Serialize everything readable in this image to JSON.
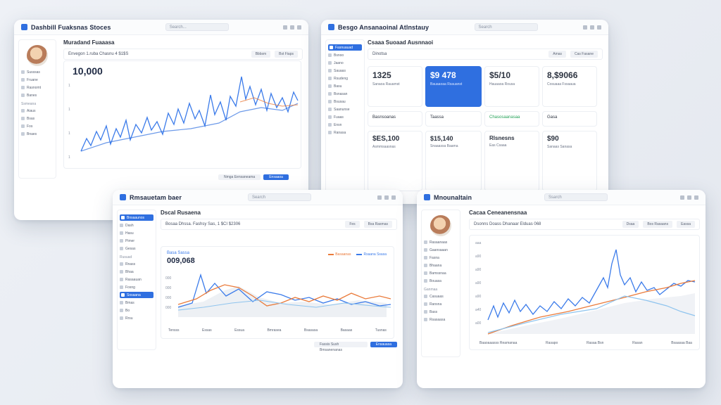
{
  "w1": {
    "title": "Dashbill Fuaksnas Stoces",
    "search": "Search...",
    "section": "Muradand Fuaaasa",
    "toolbar": "Envegon 1.ruba Chasnu 4 $1$S",
    "tool1": "Bbbsm",
    "tool2": "Bst Fiaps",
    "big": "10,000",
    "footer1": "Nmga Eensaneama",
    "footer2": "Ensaaoa",
    "side": [
      "Susssas",
      "Fruane",
      "Rasnomt",
      "Banes",
      "Aiaus",
      "Bsas",
      "Fos",
      "Bnaes"
    ],
    "side_head": "Ssmeana"
  },
  "w2": {
    "title": "Besgo Ansanaoinal Atlnstauy",
    "search": "Search",
    "section": "Csaaa Suoaad Ausnnaoi",
    "toolbar": "Dinotsa",
    "tool1": "Amas",
    "tool2": "Cas Fasane",
    "kpi": [
      {
        "val": "1325",
        "label": "Sanaoa Rauamst"
      },
      {
        "val": "$9 478",
        "label": "Bauaaoaa Rsauanst"
      },
      {
        "val": "$5/10",
        "label": "Hauaaoa Rousa"
      },
      {
        "val": "8,$9066",
        "label": "Cosuaaa Fssaaua"
      }
    ],
    "chips": [
      "Basnsoanas",
      "Taassa",
      "Chasosaanasaa",
      "Gasa"
    ],
    "lower": [
      {
        "val": "$ES,100",
        "label": "Asmmsaasnas"
      },
      {
        "val": "$15,140",
        "label": "Snaaassa Baama"
      },
      {
        "val": "Rlsnesns",
        "label": "Eas Csaaa"
      },
      {
        "val": "$90",
        "label": "Sanaas Sanasa"
      }
    ],
    "side": [
      "Fasnuauad",
      "Bsnoo",
      "Jaano",
      "Sauaas",
      "Rsudeng",
      "Basu",
      "Bsnasan",
      "Bsusau",
      "Saanunse",
      "Fuaas",
      "Ensn",
      "Ranasa"
    ]
  },
  "w3": {
    "title": "Rmsauetam baer",
    "search": "Search",
    "section": "Dscal Rusaena",
    "toolbar": "Bosaa Dhssa. Fashsy Sas, 1 $CI $2306",
    "tool1": "Fes",
    "tool2": "Bsa Rasmas",
    "subtitle": "Basa Sassa",
    "big": "009,068",
    "legend": [
      "Basaanas",
      "Rsaana Ssasa"
    ],
    "footer1": "Fassis Sush Bmsanenanas",
    "footer2": "Ensauasa",
    "xlabels": [
      "Tensss",
      "Essas",
      "Essua",
      "Bmrasea",
      "Bsasasa",
      "Basaas",
      "Tusnas"
    ],
    "side": [
      "Bnsaaunos",
      "Dash",
      "Hasu",
      "Pimer",
      "Gesas",
      "Rnass",
      "Bhaa",
      "Rasaauan",
      "Fosng",
      "Sosaana",
      "Bmas",
      "Bo",
      "Rrsu"
    ],
    "side_head": "Rusuad"
  },
  "w4": {
    "title": "Mnounaltain",
    "search": "Ssarch",
    "section": "Cacaa Ceneanensnaa",
    "toolbar": "Dsonns Doass Dhanaar Elduas 068",
    "tool1": "Dsaa",
    "tool2": "Bos Rasaans",
    "tool3": "Eassa",
    "yticks": [
      "aaa",
      "a90",
      "a90",
      "a90",
      "a90",
      "a40",
      "a00"
    ],
    "xlabels": [
      "Baaoaaasss Reamanaa",
      "Rasapo",
      "Rasaa Bsn",
      "Rasan",
      "Bsaasaa Baa"
    ],
    "side": [
      "Rasaanaas",
      "Gaansaaan",
      "Fasna",
      "Bhaana",
      "Bamssnaa",
      "Bouasa",
      "Casuaas",
      "Ransna",
      "Bass",
      "Rsasaasa"
    ],
    "side_head": "Ganmaa"
  },
  "colors": {
    "accent": "#2f6fe0",
    "series_blue": "#3b7bea",
    "series_orange": "#ea7b3b",
    "series_light": "#8fc4ee"
  }
}
